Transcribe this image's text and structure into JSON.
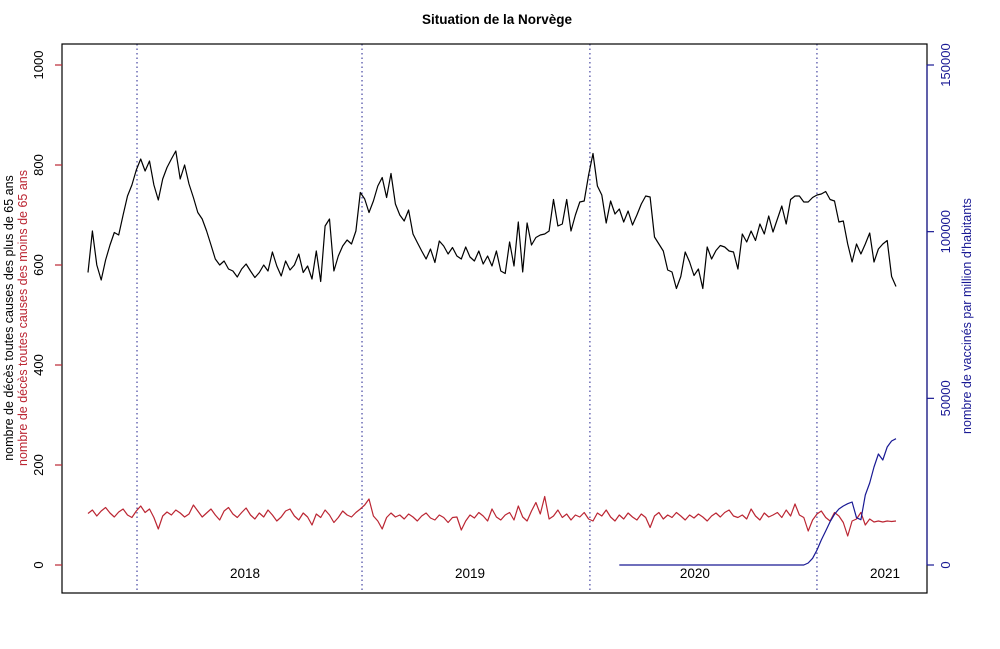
{
  "page": {
    "background": "#ffffff"
  },
  "chart_data": {
    "type": "line",
    "title": "Situation de la Norvège",
    "x_axis": {
      "tick_labels": [
        "2018",
        "2019",
        "2020",
        "2021"
      ],
      "tick_label_weeks": [
        35.75,
        87.0,
        138.2,
        181.5
      ],
      "year_line_weeks": [
        11.16,
        62.4,
        114.3,
        166.0
      ],
      "gridline_style": "dotted",
      "gridline_color": "#20208f"
    },
    "left_axis": {
      "range": [
        0,
        1000
      ],
      "ticks": [
        0,
        200,
        400,
        600,
        800,
        1000
      ],
      "tick_color": "#bb2633",
      "label_color": "#000000",
      "title_primary": "nombre de décès toutes causes des plus de 65 ans",
      "title_primary_color": "#000000",
      "title_secondary": "nombre de décès toutes causes des moins de 65 ans",
      "title_secondary_color": "#bb2633"
    },
    "right_axis": {
      "range": [
        0,
        150000
      ],
      "ticks": [
        0,
        50000,
        100000,
        150000
      ],
      "color": "#191994",
      "title": "nombre de vaccinés par million d'habitants"
    },
    "series": [
      {
        "name": "deces_plus_de_65_ans",
        "axis": "left",
        "color": "#000000",
        "values": [
          585,
          668,
          600,
          570,
          610,
          640,
          665,
          660,
          700,
          738,
          760,
          790,
          812,
          788,
          808,
          760,
          730,
          772,
          795,
          812,
          828,
          772,
          800,
          762,
          735,
          705,
          692,
          668,
          640,
          612,
          600,
          608,
          592,
          588,
          576,
          592,
          602,
          588,
          575,
          585,
          600,
          588,
          626,
          598,
          578,
          608,
          590,
          600,
          622,
          585,
          598,
          572,
          628,
          567,
          678,
          692,
          588,
          618,
          638,
          650,
          642,
          668,
          745,
          732,
          705,
          728,
          758,
          775,
          735,
          783,
          722,
          700,
          688,
          710,
          662,
          645,
          628,
          612,
          632,
          605,
          648,
          638,
          622,
          635,
          618,
          612,
          636,
          616,
          608,
          628,
          602,
          618,
          598,
          628,
          588,
          583,
          646,
          598,
          686,
          586,
          684,
          640,
          655,
          660,
          662,
          668,
          731,
          678,
          682,
          731,
          668,
          700,
          726,
          728,
          780,
          823,
          758,
          740,
          684,
          728,
          702,
          712,
          686,
          708,
          680,
          700,
          722,
          738,
          736,
          656,
          642,
          628,
          590,
          586,
          553,
          577,
          626,
          606,
          579,
          592,
          553,
          636,
          612,
          629,
          639,
          636,
          628,
          626,
          592,
          662,
          646,
          668,
          649,
          682,
          662,
          698,
          666,
          692,
          718,
          682,
          731,
          738,
          738,
          726,
          726,
          735,
          740,
          742,
          747,
          731,
          728,
          686,
          688,
          642,
          606,
          642,
          622,
          642,
          664,
          606,
          632,
          642,
          649,
          577,
          557
        ]
      },
      {
        "name": "deces_moins_de_65_ans",
        "axis": "left",
        "color": "#bb2633",
        "values": [
          103,
          110,
          98,
          108,
          115,
          104,
          96,
          106,
          112,
          100,
          95,
          108,
          118,
          105,
          112,
          95,
          72,
          98,
          106,
          100,
          110,
          104,
          96,
          102,
          120,
          108,
          96,
          104,
          112,
          100,
          90,
          108,
          115,
          102,
          95,
          105,
          114,
          100,
          92,
          104,
          96,
          110,
          100,
          88,
          96,
          108,
          112,
          98,
          90,
          104,
          96,
          80,
          102,
          95,
          110,
          100,
          85,
          95,
          108,
          100,
          96,
          105,
          112,
          120,
          132,
          98,
          88,
          72,
          95,
          104,
          96,
          100,
          92,
          102,
          96,
          88,
          98,
          104,
          94,
          90,
          100,
          95,
          85,
          95,
          96,
          70,
          88,
          100,
          94,
          105,
          98,
          88,
          112,
          96,
          90,
          100,
          105,
          90,
          118,
          96,
          88,
          108,
          125,
          102,
          137,
          92,
          98,
          110,
          95,
          102,
          90,
          100,
          96,
          105,
          92,
          88,
          104,
          98,
          110,
          96,
          88,
          100,
          92,
          104,
          96,
          90,
          102,
          95,
          75,
          98,
          105,
          92,
          100,
          95,
          105,
          98,
          90,
          100,
          94,
          102,
          96,
          88,
          98,
          104,
          96,
          105,
          110,
          98,
          95,
          100,
          92,
          112,
          98,
          90,
          104,
          96,
          100,
          105,
          95,
          110,
          98,
          122,
          100,
          95,
          68,
          90,
          102,
          108,
          95,
          88,
          105,
          98,
          85,
          58,
          88,
          92,
          105,
          80,
          92,
          86,
          88,
          86,
          88,
          87,
          88
        ]
      },
      {
        "name": "vaccines_par_million",
        "axis": "right",
        "color": "#191994",
        "values": [
          null,
          null,
          null,
          null,
          null,
          null,
          null,
          null,
          null,
          null,
          null,
          null,
          null,
          null,
          null,
          null,
          null,
          null,
          null,
          null,
          null,
          null,
          null,
          null,
          null,
          null,
          null,
          null,
          null,
          null,
          null,
          null,
          null,
          null,
          null,
          null,
          null,
          null,
          null,
          null,
          null,
          null,
          null,
          null,
          null,
          null,
          null,
          null,
          null,
          null,
          null,
          null,
          null,
          null,
          null,
          null,
          null,
          null,
          null,
          null,
          null,
          null,
          null,
          null,
          null,
          null,
          null,
          null,
          null,
          null,
          null,
          null,
          null,
          null,
          null,
          null,
          null,
          null,
          null,
          null,
          null,
          null,
          null,
          null,
          null,
          null,
          null,
          null,
          null,
          null,
          null,
          null,
          null,
          null,
          null,
          null,
          null,
          null,
          null,
          null,
          null,
          null,
          null,
          null,
          null,
          null,
          null,
          null,
          null,
          null,
          null,
          null,
          null,
          null,
          null,
          null,
          null,
          null,
          null,
          null,
          null,
          0,
          0,
          0,
          0,
          0,
          0,
          0,
          0,
          0,
          0,
          0,
          0,
          0,
          0,
          0,
          0,
          0,
          0,
          0,
          0,
          0,
          0,
          0,
          0,
          0,
          0,
          0,
          0,
          0,
          0,
          0,
          0,
          0,
          0,
          0,
          0,
          0,
          0,
          0,
          0,
          0,
          0,
          0,
          600,
          2000,
          4500,
          7500,
          10200,
          13000,
          15200,
          16800,
          17700,
          18400,
          18900,
          14200,
          13600,
          21000,
          24600,
          29400,
          33300,
          31500,
          35400,
          37200,
          37900
        ]
      }
    ]
  }
}
